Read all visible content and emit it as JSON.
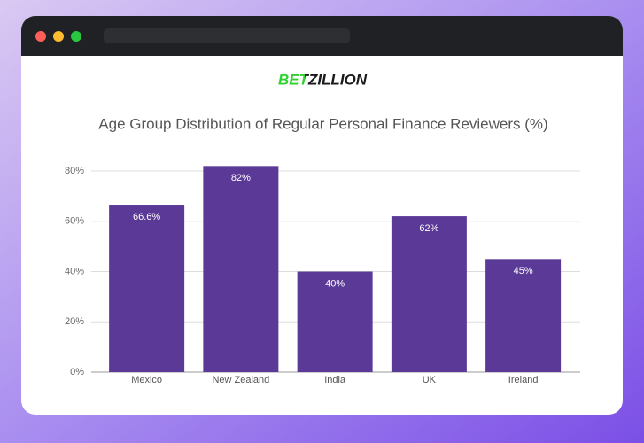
{
  "logo": "BETZILLION",
  "chart_data": {
    "type": "bar",
    "title": "Age Group Distribution of Regular Personal Finance Reviewers (%)",
    "categories": [
      "Mexico",
      "New Zealand",
      "India",
      "UK",
      "Ireland"
    ],
    "values": [
      66.6,
      82,
      40,
      62,
      45
    ],
    "value_labels": [
      "66.6%",
      "82%",
      "40%",
      "62%",
      "45%"
    ],
    "color": "#5a3a96",
    "ylim": [
      0,
      80
    ],
    "yticks": [
      {
        "value": 0,
        "label": "0%"
      },
      {
        "value": 20,
        "label": "20%"
      },
      {
        "value": 40,
        "label": "40%"
      },
      {
        "value": 60,
        "label": "60%"
      },
      {
        "value": 80,
        "label": "80%"
      }
    ],
    "grid": true
  }
}
